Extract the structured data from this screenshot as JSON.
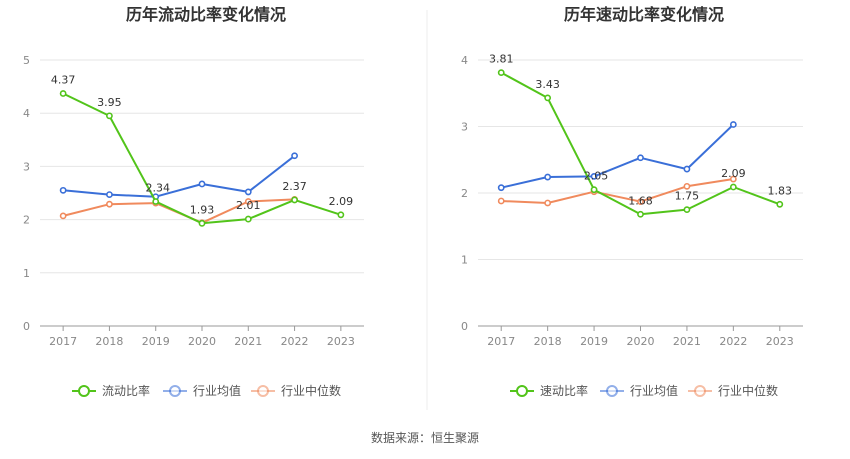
{
  "source_text": "数据来源：恒生聚源",
  "chart_data": [
    {
      "type": "line",
      "title": "历年流动比率变化情况",
      "categories": [
        "2017",
        "2018",
        "2019",
        "2020",
        "2021",
        "2022",
        "2023"
      ],
      "ylim": [
        0,
        5
      ],
      "yticks": [
        0,
        1,
        2,
        3,
        4,
        5
      ],
      "grid": true,
      "legend_position": "bottom",
      "series": [
        {
          "name": "流动比率",
          "color": "#52c41a",
          "values": [
            4.37,
            3.95,
            2.34,
            1.93,
            2.01,
            2.37,
            2.09
          ],
          "labels": [
            "4.37",
            "3.95",
            "2.34",
            "1.93",
            "2.01",
            "2.37",
            "2.09"
          ]
        },
        {
          "name": "行业均值",
          "color": "#3a6fd8",
          "values": [
            2.55,
            2.47,
            2.43,
            2.67,
            2.52,
            3.2,
            null
          ]
        },
        {
          "name": "行业中位数",
          "color": "#f08a5d",
          "values": [
            2.07,
            2.29,
            2.31,
            1.94,
            2.34,
            2.38,
            null
          ]
        }
      ]
    },
    {
      "type": "line",
      "title": "历年速动比率变化情况",
      "categories": [
        "2017",
        "2018",
        "2019",
        "2020",
        "2021",
        "2022",
        "2023"
      ],
      "ylim": [
        0,
        4
      ],
      "yticks": [
        0,
        1,
        2,
        3,
        4
      ],
      "grid": true,
      "legend_position": "bottom",
      "series": [
        {
          "name": "速动比率",
          "color": "#52c41a",
          "values": [
            3.81,
            3.43,
            2.05,
            1.68,
            1.75,
            2.09,
            1.83
          ],
          "labels": [
            "3.81",
            "3.43",
            "2.05",
            "1.68",
            "1.75",
            "2.09",
            "1.83"
          ]
        },
        {
          "name": "行业均值",
          "color": "#3a6fd8",
          "values": [
            2.08,
            2.24,
            2.25,
            2.53,
            2.36,
            3.03,
            null
          ]
        },
        {
          "name": "行业中位数",
          "color": "#f08a5d",
          "values": [
            1.88,
            1.85,
            2.02,
            1.87,
            2.1,
            2.21,
            null
          ]
        }
      ]
    }
  ]
}
